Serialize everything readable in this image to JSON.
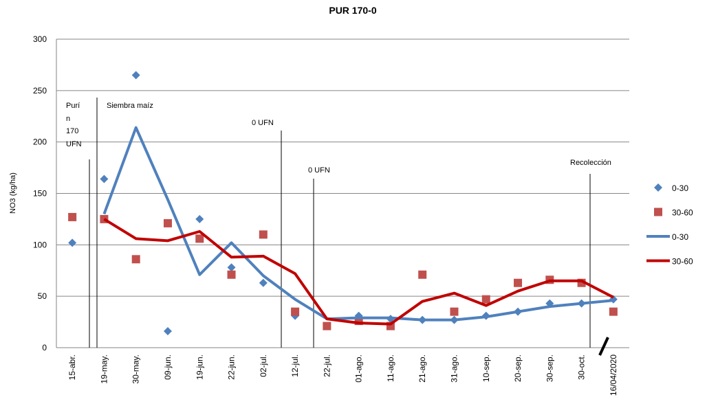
{
  "chart_data": {
    "type": "line",
    "title": "PUR 170-0",
    "y_label": "NO3 (kg/ha)",
    "categories": [
      "15-abr.",
      "19-may.",
      "30-may.",
      "09-jun.",
      "19-jun.",
      "22-jun.",
      "02-jul.",
      "12-jul.",
      "22-jul.",
      "01-ago.",
      "11-ago.",
      "21-ago.",
      "31-ago.",
      "10-sep.",
      "20-sep.",
      "30-sep.",
      "30-oct.",
      "16/04/2020"
    ],
    "ylim": [
      0,
      300
    ],
    "yticks": [
      0,
      50,
      100,
      150,
      200,
      250,
      300
    ],
    "grid": true,
    "legend": "right",
    "series": [
      {
        "name": "0-30",
        "kind": "scatter",
        "marker": "diamond",
        "color": "#4f81bd",
        "values": [
          102,
          164,
          265,
          16,
          125,
          78,
          63,
          31,
          null,
          31,
          28,
          27,
          27,
          31,
          35,
          43,
          43,
          47
        ]
      },
      {
        "name": "30-60",
        "kind": "scatter",
        "marker": "square",
        "color": "#c0504d",
        "values": [
          127,
          125,
          86,
          121,
          106,
          71,
          110,
          35,
          21,
          26,
          21,
          71,
          35,
          47,
          63,
          66,
          63,
          35
        ]
      },
      {
        "name": "0-30",
        "kind": "line",
        "color": "#4f81bd",
        "values": [
          null,
          130,
          214,
          144,
          71,
          102,
          70,
          47,
          28,
          29,
          29,
          27,
          27,
          30,
          35,
          40,
          43,
          46
        ]
      },
      {
        "name": "30-60",
        "kind": "line",
        "color": "#c00000",
        "values": [
          null,
          125,
          106,
          104,
          113,
          88,
          89,
          72,
          28,
          24,
          23,
          45,
          53,
          41,
          55,
          65,
          65,
          49
        ]
      }
    ],
    "annotations": [
      [
        "Purí",
        "n",
        "170",
        "UFN"
      ],
      [
        "Siembra maíz"
      ],
      [
        "0 UFN"
      ],
      [
        "0 UFN"
      ],
      [
        "Recolección"
      ]
    ]
  }
}
